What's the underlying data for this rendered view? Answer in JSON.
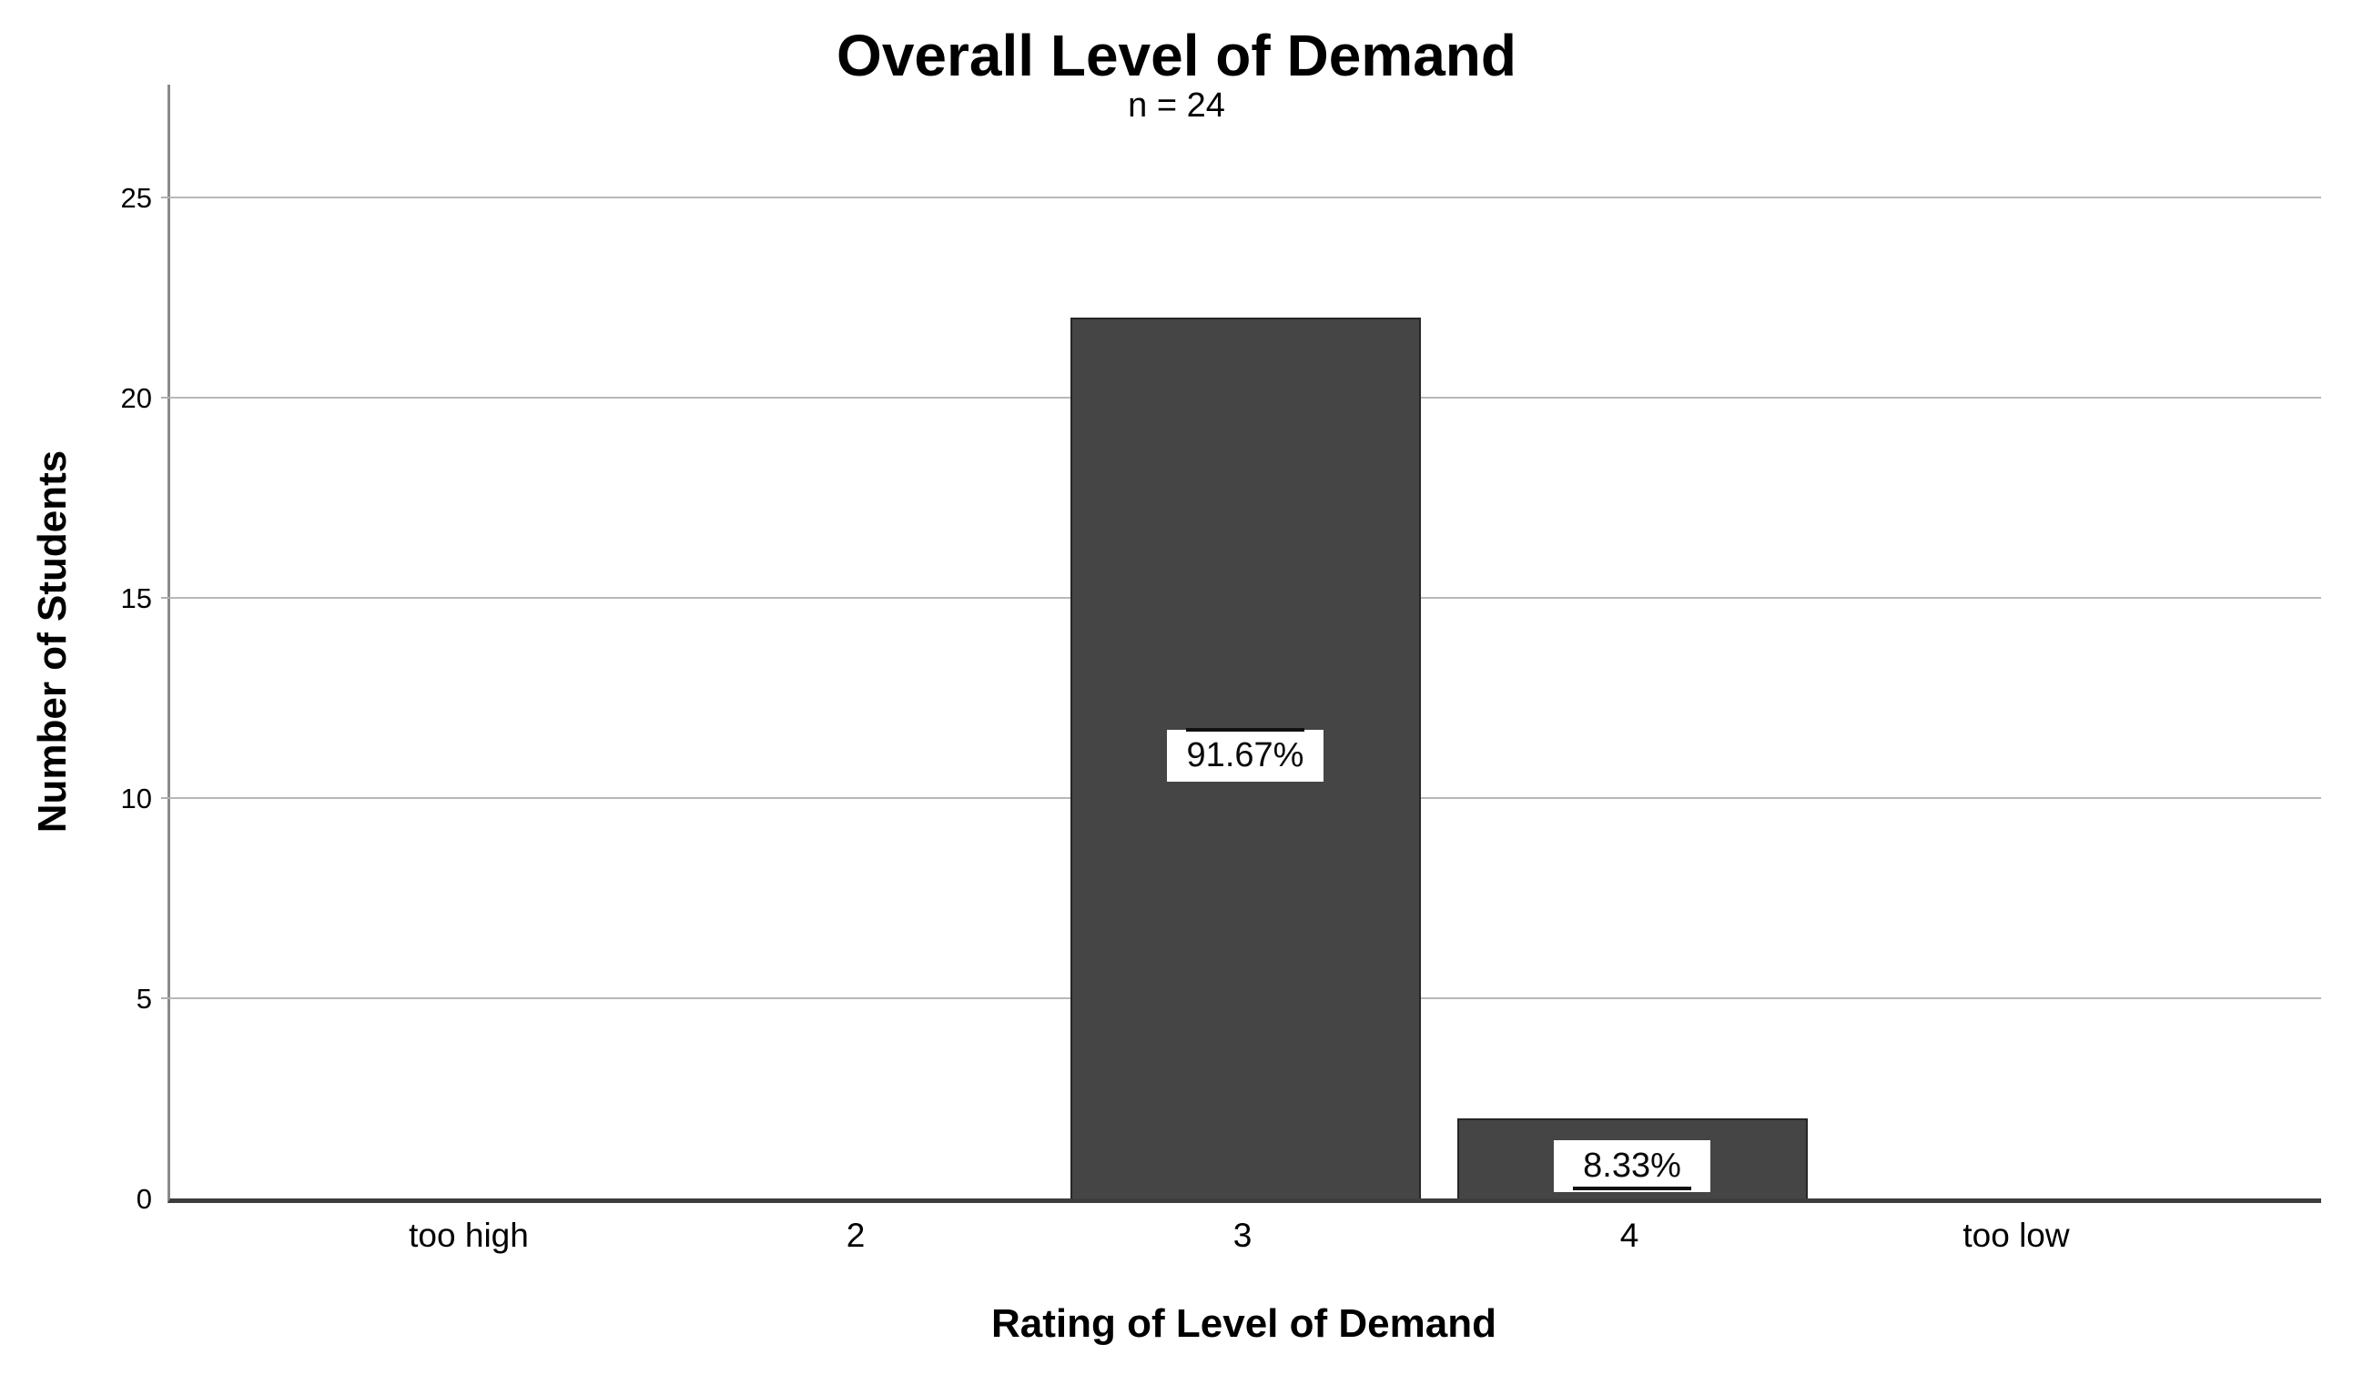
{
  "chart_data": {
    "type": "bar",
    "title": "Overall Level of Demand",
    "subtitle": "n = 24",
    "xlabel": "Rating of Level of Demand",
    "ylabel": "Number of Students",
    "categories": [
      "too high",
      "2",
      "3",
      "4",
      "too low"
    ],
    "values": [
      0,
      0,
      22,
      2,
      0
    ],
    "bar_labels": [
      {
        "category": "3",
        "text": "91.67%",
        "placement": "bar-middle",
        "line_side": "top"
      },
      {
        "category": "4",
        "text": "8.33%",
        "placement": "bar-top",
        "line_side": "bottom"
      }
    ],
    "ylim": [
      0,
      25
    ],
    "yticks": [
      0,
      5,
      10,
      15,
      20,
      25
    ],
    "grid": "horizontal",
    "legend": "none",
    "colors": {
      "bar_fill": "#454545",
      "bar_border": "#262626",
      "gridline": "#b8b8b8",
      "y_axis_line": "#8a8a8a",
      "x_axis_line": "#3d3d3d",
      "label_box_bg": "#ffffff",
      "text": "#000000"
    }
  }
}
